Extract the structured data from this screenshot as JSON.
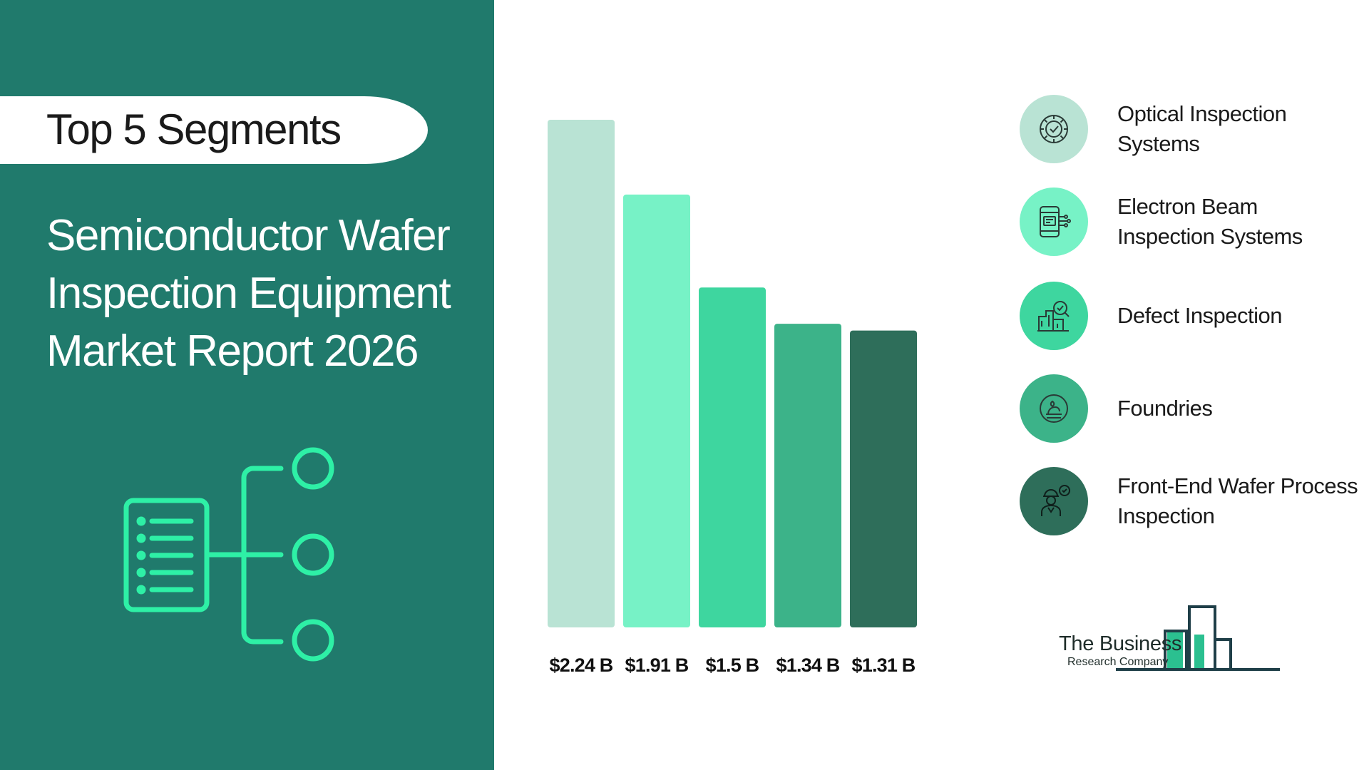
{
  "header": {
    "pill_label": "Top 5 Segments",
    "title_lines": [
      "Semiconductor Wafer",
      "Inspection Equipment",
      "Market Report 2026"
    ]
  },
  "chart_data": {
    "type": "bar",
    "categories": [
      "Optical Inspection Systems",
      "Electron Beam Inspection Systems",
      "Defect Inspection",
      "Foundries",
      "Front-End Wafer Process Inspection"
    ],
    "values": [
      2.24,
      1.91,
      1.5,
      1.34,
      1.31
    ],
    "value_labels": [
      "$2.24 B",
      "$1.91 B",
      "$1.5 B",
      "$1.34 B",
      "$1.31 B"
    ],
    "colors": [
      "#b9e3d4",
      "#77f2c6",
      "#3ed69f",
      "#3cb389",
      "#2e6e5a"
    ],
    "ylim": [
      0,
      2.24
    ],
    "grid": false,
    "legend_position": "right"
  },
  "legend": {
    "items": [
      {
        "label": "Optical Inspection Systems",
        "icon": "gear-check-icon",
        "color": "#b9e3d4"
      },
      {
        "label": "Electron Beam Inspection Systems",
        "icon": "circuit-device-icon",
        "color": "#77f2c6"
      },
      {
        "label": "Defect Inspection",
        "icon": "building-search-icon",
        "color": "#3ed69f"
      },
      {
        "label": "Foundries",
        "icon": "foundry-hand-icon",
        "color": "#3cb389"
      },
      {
        "label": "Front-End Wafer Process Inspection",
        "icon": "worker-check-icon",
        "color": "#2e6e5a"
      }
    ]
  },
  "logo": {
    "line1": "The Business",
    "line2": "Research Company",
    "accent_color": "#2bc090",
    "ink_color": "#1f3f48"
  }
}
